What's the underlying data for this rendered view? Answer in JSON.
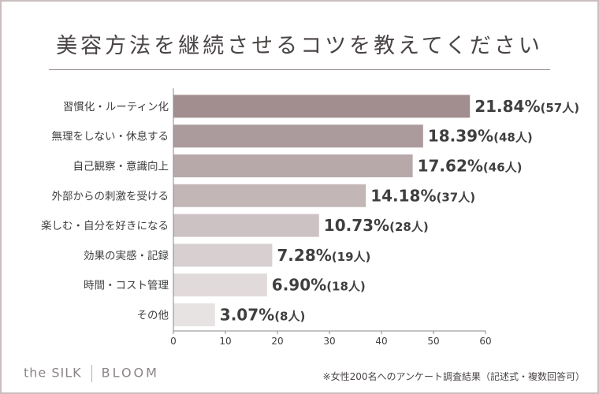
{
  "header": {
    "title": "美容方法を継続させるコツを教えてください"
  },
  "footer": {
    "brand_left": "the SILK",
    "brand_right": "BLOOM",
    "note": "※女性200名へのアンケート調査結果（記述式・複数回答可）"
  },
  "chart_data": {
    "type": "bar",
    "orientation": "horizontal",
    "title": "美容方法を継続させるコツを教えてください",
    "xlabel": "",
    "ylabel": "",
    "xlim": [
      0,
      60
    ],
    "xticks": [
      0,
      10,
      20,
      30,
      40,
      50,
      60
    ],
    "categories": [
      "習慣化・ルーティン化",
      "無理をしない・休息する",
      "自己観察・意識向上",
      "外部からの刺激を受ける",
      "楽しむ・自分を好きになる",
      "効果の実感・記録",
      "時間・コスト管理",
      "その他"
    ],
    "values": [
      57,
      48,
      46,
      37,
      28,
      19,
      18,
      8
    ],
    "percent_labels": [
      "21.84%",
      "18.39%",
      "17.62%",
      "14.18%",
      "10.73%",
      "7.28%",
      "6.90%",
      "3.07%"
    ],
    "count_labels": [
      "(57人)",
      "(48人)",
      "(46人)",
      "(37人)",
      "(28人)",
      "(19人)",
      "(18人)",
      "(8人)"
    ],
    "colors": [
      "#a28e8f",
      "#ac9b9c",
      "#b7a9aa",
      "#c2b6b7",
      "#cdc2c3",
      "#d7cfd0",
      "#e1dadb",
      "#e8e3e3"
    ],
    "grid": false
  }
}
